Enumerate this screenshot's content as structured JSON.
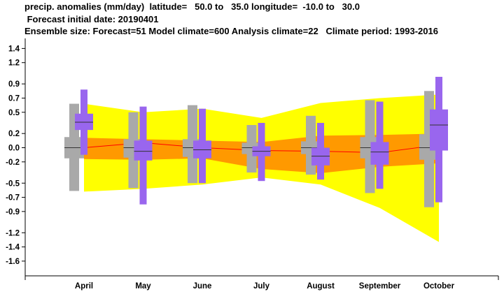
{
  "header": {
    "line1": "precip. anomalies (mm/day)  latitude=   50.0 to   35.0 longitude=  -10.0 to   30.0",
    "line2": " Forecast initial date: 20190401",
    "line3": "Ensemble size: Forecast=51 Model climate=600 Analysis climate=22   Climate period: 1993-2016"
  },
  "colors": {
    "outer_band": "#ffff00",
    "inner_band": "#ff9900",
    "median_line": "#ff0000",
    "climate_box": "#a9a9a9",
    "forecast_box": "#9966ee",
    "box_median": "#333333"
  },
  "chart_data": {
    "type": "box",
    "categories": [
      "April",
      "May",
      "June",
      "July",
      "August",
      "September",
      "October"
    ],
    "y_ticks": [
      1.4,
      1.2,
      0.9,
      0.7,
      0.5,
      0.2,
      0.0,
      -0.2,
      -0.5,
      -0.7,
      -0.9,
      -1.2,
      -1.4,
      -1.6
    ],
    "y_tick_labels": [
      "1.4",
      "1.2",
      "0.9",
      "0.7",
      "0.5",
      "0.2",
      "0.0",
      "-0.2",
      "-0.5",
      "-0.7",
      "-0.9",
      "-1.2",
      "-1.4",
      "-1.6"
    ],
    "ylim": [
      -1.8,
      1.45
    ],
    "band_outer": {
      "upper": [
        0.62,
        0.5,
        0.55,
        0.42,
        0.63,
        0.7,
        0.75
      ],
      "lower": [
        -0.62,
        -0.58,
        -0.52,
        -0.42,
        -0.52,
        -0.85,
        -1.33
      ]
    },
    "band_inner": {
      "upper": [
        0.14,
        0.12,
        0.1,
        0.08,
        0.17,
        0.18,
        0.2
      ],
      "lower": [
        -0.16,
        -0.17,
        -0.15,
        -0.3,
        -0.36,
        -0.27,
        -0.22
      ]
    },
    "median_line": [
      0.0,
      0.07,
      0.0,
      -0.04,
      -0.05,
      -0.07,
      0.04
    ],
    "climate": [
      {
        "min": -0.61,
        "q1": -0.15,
        "median": 0.0,
        "q3": 0.15,
        "max": 0.62
      },
      {
        "min": -0.57,
        "q1": -0.14,
        "median": 0.0,
        "q3": 0.12,
        "max": 0.5
      },
      {
        "min": -0.5,
        "q1": -0.13,
        "median": 0.0,
        "q3": 0.12,
        "max": 0.6
      },
      {
        "min": -0.35,
        "q1": -0.09,
        "median": 0.0,
        "q3": 0.07,
        "max": 0.32
      },
      {
        "min": -0.38,
        "q1": -0.09,
        "median": 0.0,
        "q3": 0.09,
        "max": 0.45
      },
      {
        "min": -0.64,
        "q1": -0.15,
        "median": 0.0,
        "q3": 0.15,
        "max": 0.67
      },
      {
        "min": -0.84,
        "q1": -0.17,
        "median": 0.0,
        "q3": 0.19,
        "max": 0.8
      }
    ],
    "forecast": [
      {
        "min": -0.1,
        "q1": 0.25,
        "median": 0.36,
        "q3": 0.48,
        "max": 0.82
      },
      {
        "min": -0.8,
        "q1": -0.18,
        "median": -0.05,
        "q3": 0.1,
        "max": 0.58
      },
      {
        "min": -0.5,
        "q1": -0.15,
        "median": -0.03,
        "q3": 0.1,
        "max": 0.55
      },
      {
        "min": -0.47,
        "q1": -0.12,
        "median": -0.05,
        "q3": 0.02,
        "max": 0.35
      },
      {
        "min": -0.45,
        "q1": -0.25,
        "median": -0.12,
        "q3": 0.0,
        "max": 0.35
      },
      {
        "min": -0.58,
        "q1": -0.24,
        "median": -0.06,
        "q3": 0.08,
        "max": 0.65
      },
      {
        "min": -0.77,
        "q1": -0.04,
        "median": 0.32,
        "q3": 0.54,
        "max": 1.0
      }
    ],
    "grid": false,
    "xlabel": "",
    "ylabel": ""
  }
}
